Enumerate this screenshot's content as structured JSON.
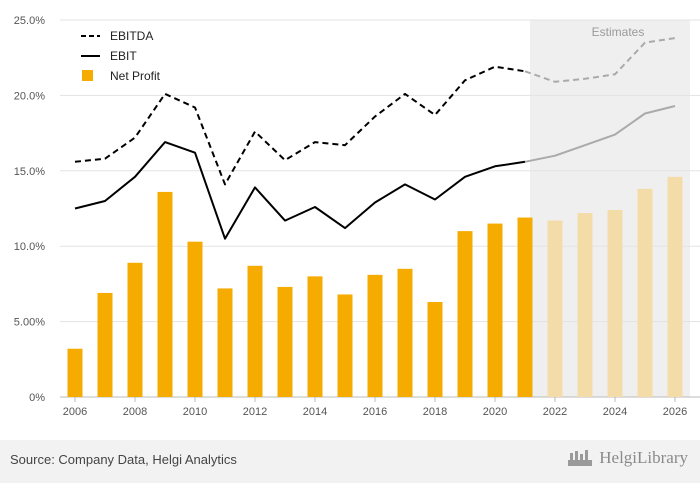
{
  "chart_data": {
    "type": "bar",
    "categories": [
      "2006",
      "2007",
      "2008",
      "2009",
      "2010",
      "2011",
      "2012",
      "2013",
      "2014",
      "2015",
      "2016",
      "2017",
      "2018",
      "2019",
      "2020",
      "2021",
      "2022",
      "2023",
      "2024",
      "2025",
      "2026"
    ],
    "x_tick_labels": [
      "2006",
      "2008",
      "2010",
      "2012",
      "2014",
      "2016",
      "2018",
      "2020",
      "2022",
      "2024",
      "2026"
    ],
    "y_tick_labels": [
      "0%",
      "5.00%",
      "10.0%",
      "15.0%",
      "20.0%",
      "25.0%"
    ],
    "ylim": [
      0,
      25
    ],
    "estimates_from": "2022",
    "estimates_label": "Estimates",
    "series": [
      {
        "name": "EBITDA",
        "kind": "line-dashed",
        "color": "#000000",
        "estimate_color": "#aaaaaa",
        "values": [
          15.6,
          15.8,
          17.2,
          20.1,
          19.2,
          14.1,
          17.6,
          15.7,
          16.9,
          16.7,
          18.6,
          20.1,
          18.7,
          21.0,
          21.9,
          21.6,
          20.9,
          21.1,
          21.4,
          23.5,
          23.8
        ]
      },
      {
        "name": "EBIT",
        "kind": "line",
        "color": "#000000",
        "estimate_color": "#aaaaaa",
        "values": [
          12.5,
          13.0,
          14.6,
          16.9,
          16.2,
          10.5,
          13.9,
          11.7,
          12.6,
          11.2,
          12.9,
          14.1,
          13.1,
          14.6,
          15.3,
          15.6,
          16.0,
          16.7,
          17.4,
          18.8,
          19.3
        ]
      },
      {
        "name": "Net Profit",
        "kind": "bar",
        "color": "#f5ab00",
        "estimate_color": "#f4dca8",
        "values": [
          3.2,
          6.9,
          8.9,
          13.6,
          10.3,
          7.2,
          8.7,
          7.3,
          8.0,
          6.8,
          8.1,
          8.5,
          6.3,
          11.0,
          11.5,
          11.9,
          11.7,
          12.2,
          12.4,
          13.8,
          14.6
        ]
      }
    ]
  },
  "footer": {
    "source": "Source: Company Data, Helgi Analytics",
    "brand": "HelgiLibrary"
  }
}
